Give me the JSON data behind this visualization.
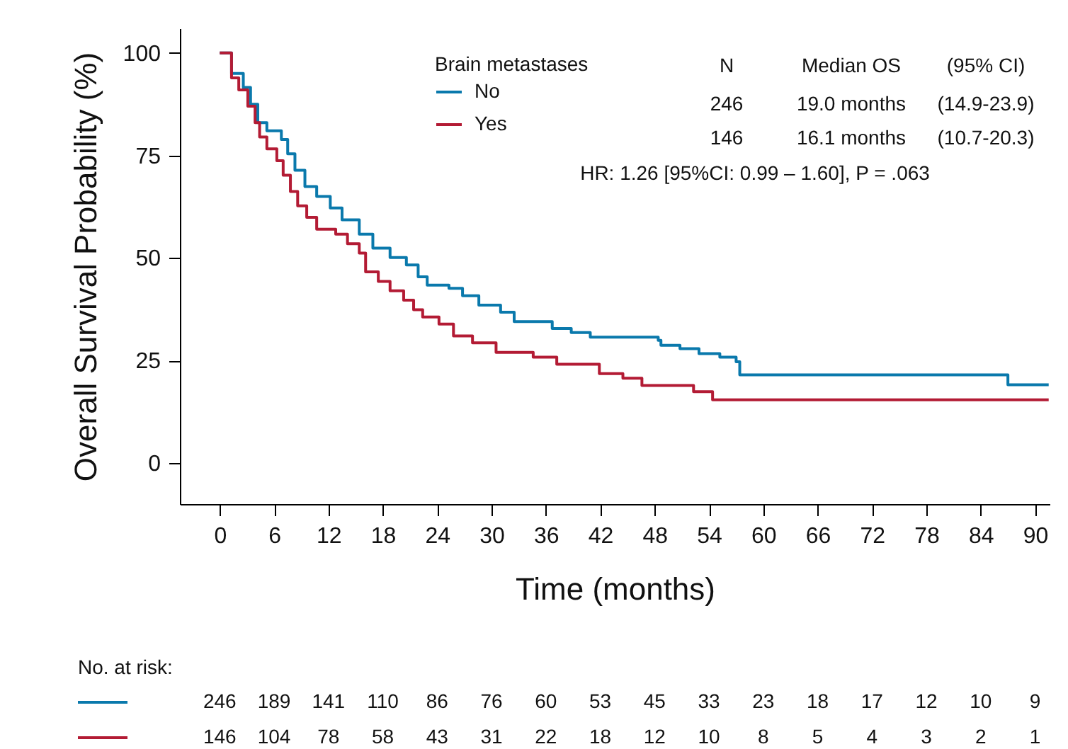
{
  "chart_data": {
    "type": "step",
    "xlabel": "Time (months)",
    "ylabel": "Overall Survival Probability (%)",
    "legend_title": "Brain metastases",
    "legend": "top",
    "marker": "none",
    "line_style": "solid",
    "grid": false,
    "xlim": [
      -4.4,
      91.6
    ],
    "ylim": [
      -10,
      106
    ],
    "xticks": [
      0,
      6,
      12,
      18,
      24,
      30,
      36,
      42,
      48,
      54,
      60,
      66,
      72,
      78,
      84,
      90
    ],
    "yticks": [
      0,
      25,
      50,
      75,
      100
    ],
    "series": [
      {
        "name": "No",
        "color": "#0a79ac",
        "x": [
          0,
          1.3,
          2.6,
          3.4,
          4.2,
          5.2,
          6.8,
          7.5,
          8.3,
          9.4,
          10.7,
          12.2,
          13.5,
          15.4,
          16.9,
          18.8,
          20.6,
          21.9,
          22.9,
          25.3,
          26.8,
          28.6,
          31,
          32.5,
          35.7,
          36.7,
          38.8,
          40.9,
          48.4,
          48.7,
          50.8,
          52.9,
          55.2,
          57,
          57.4,
          87,
          91.5
        ],
        "values": [
          100,
          95,
          91.6,
          87.5,
          83,
          81,
          78.9,
          75.4,
          71.4,
          67.4,
          65,
          62.2,
          59.3,
          55.8,
          52.4,
          50.1,
          48.3,
          45.4,
          43.4,
          42.6,
          40.8,
          38.5,
          36.8,
          34.5,
          34.5,
          32.8,
          31.8,
          30.7,
          29.9,
          28.7,
          27.9,
          26.7,
          25.8,
          24.7,
          21.5,
          19.1,
          19.1
        ]
      },
      {
        "name": "Yes",
        "color": "#b31b34",
        "x": [
          0,
          1.3,
          2.1,
          3.1,
          3.9,
          4.4,
          5.2,
          6.3,
          7,
          7.8,
          8.6,
          9.6,
          10.7,
          12.8,
          14.1,
          15.4,
          16.1,
          17.5,
          18.8,
          20.3,
          21.4,
          22.4,
          24.2,
          25.8,
          27.9,
          30.5,
          34.6,
          37.2,
          41.9,
          44.5,
          46.6,
          52.3,
          54.4,
          91.5
        ],
        "values": [
          100,
          93.9,
          91,
          87,
          83,
          79.5,
          76.6,
          73.7,
          70.2,
          66.2,
          62.7,
          59.9,
          57,
          55.8,
          53.5,
          51.2,
          46.6,
          44.3,
          42,
          39.7,
          37.4,
          35.6,
          33.9,
          31,
          29.3,
          27,
          25.8,
          24.1,
          21.8,
          20.7,
          18.9,
          17.4,
          15.4,
          15.4
        ]
      }
    ],
    "annotations": [
      "N",
      "Median OS",
      "(95% CI)",
      "246",
      "19.0 months",
      "(14.9-23.9)",
      "146",
      "16.1 months",
      "(10.7-20.3)",
      "HR: 1.26 [95%CI: 0.99 – 1.60], P = .063",
      "No. at risk:",
      "246 189 141 110 86 76 60 53 45 33 23 18 17 12 10 9",
      "146 104 78 58 43 31 22 18 12 10 8 5 4 3 2 1"
    ]
  }
}
